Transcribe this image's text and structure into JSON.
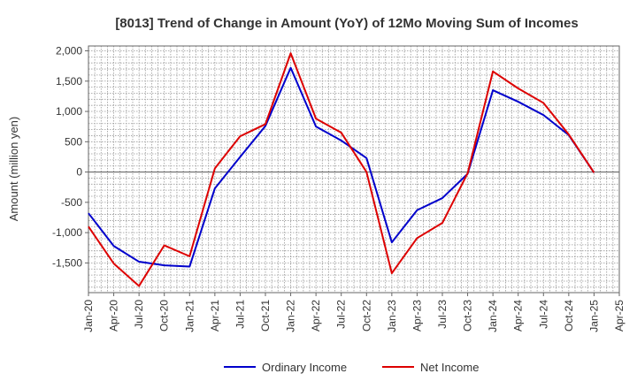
{
  "chart_data": {
    "type": "line",
    "title": "[8013]  Trend of Change in Amount (YoY) of 12Mo Moving Sum of Incomes",
    "xlabel": "",
    "ylabel": "Amount (million yen)",
    "categories": [
      "Jan-20",
      "Apr-20",
      "Jul-20",
      "Oct-20",
      "Jan-21",
      "Apr-21",
      "Jul-21",
      "Oct-21",
      "Jan-22",
      "Apr-22",
      "Jul-22",
      "Oct-22",
      "Jan-23",
      "Apr-23",
      "Jul-23",
      "Oct-23",
      "Jan-24",
      "Apr-24",
      "Jul-24",
      "Oct-24",
      "Jan-25",
      "Apr-25"
    ],
    "ylim": [
      -1990,
      2080
    ],
    "yticks": [
      2000,
      1500,
      1000,
      500,
      0,
      -500,
      -1000,
      -1500
    ],
    "ytick_labels": [
      "2,000",
      "1,500",
      "1,000",
      "500",
      "0",
      "-500",
      "-1,000",
      "-1,500"
    ],
    "grid": true,
    "legend_position": "bottom-center",
    "series": [
      {
        "name": "Ordinary Income",
        "color": "#0000cc",
        "values": [
          -680,
          -1220,
          -1480,
          -1540,
          -1560,
          -270,
          250,
          760,
          1720,
          750,
          520,
          230,
          -1160,
          -630,
          -430,
          -30,
          1350,
          1160,
          940,
          610,
          -10,
          null
        ]
      },
      {
        "name": "Net Income",
        "color": "#dd0000",
        "values": [
          -900,
          -1510,
          -1880,
          -1210,
          -1390,
          60,
          590,
          790,
          1960,
          880,
          650,
          0,
          -1670,
          -1090,
          -840,
          -20,
          1660,
          1380,
          1140,
          620,
          -10,
          null
        ]
      }
    ]
  }
}
